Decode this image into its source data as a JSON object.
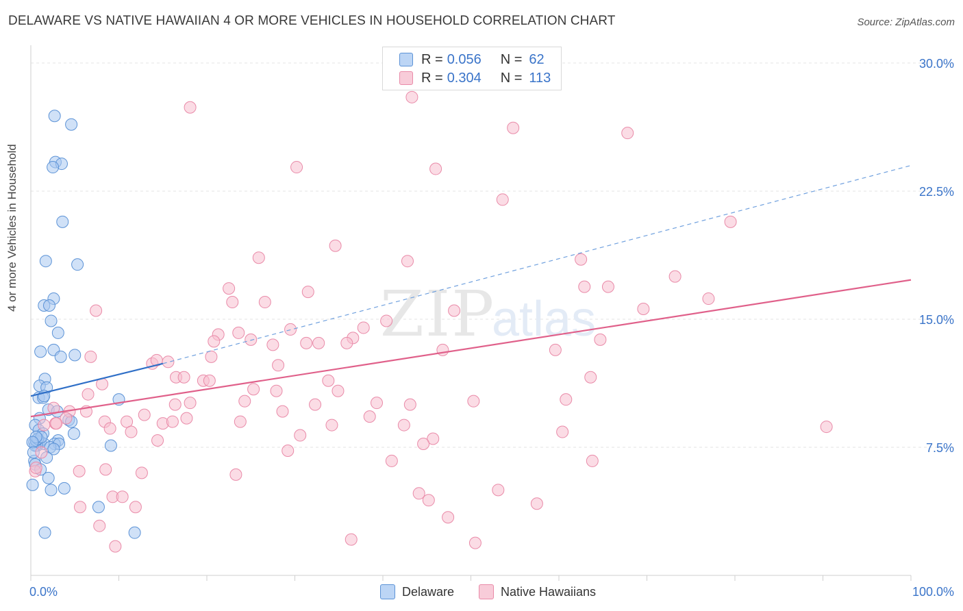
{
  "title": "DELAWARE VS NATIVE HAWAIIAN 4 OR MORE VEHICLES IN HOUSEHOLD CORRELATION CHART",
  "source": "Source: ZipAtlas.com",
  "watermark": {
    "zip": "ZIP",
    "atlas": "atlas"
  },
  "legend_top": {
    "delaware": {
      "r_label": "R =",
      "r_value": "0.056",
      "n_label": "N =",
      "n_value": "62"
    },
    "hawaiian": {
      "r_label": "R =",
      "r_value": "0.304",
      "n_label": "N =",
      "n_value": "113"
    }
  },
  "legend_bottom": {
    "delaware": "Delaware",
    "hawaiian": "Native Hawaiians"
  },
  "colors": {
    "delaware_fill": "#a9c8f0",
    "delaware_stroke": "#5b92d6",
    "delaware_line": "#2f6fc7",
    "hawaiian_fill": "#f7bfd0",
    "hawaiian_stroke": "#e98aa8",
    "hawaiian_line": "#e0608a",
    "tick_label": "#3a74c9",
    "grid": "#e3e3e3"
  },
  "chart_data": {
    "type": "scatter",
    "title": "DELAWARE VS NATIVE HAWAIIAN 4 OR MORE VEHICLES IN HOUSEHOLD CORRELATION CHART",
    "xlabel": "",
    "ylabel": "4 or more Vehicles in Household",
    "xlim": [
      0,
      100
    ],
    "ylim": [
      0,
      30.8
    ],
    "x_tick_labels": [
      {
        "value": 0,
        "label": "0.0%"
      },
      {
        "value": 100,
        "label": "100.0%"
      }
    ],
    "y_tick_labels": [
      {
        "value": 7.5,
        "label": "7.5%"
      },
      {
        "value": 15,
        "label": "15.0%"
      },
      {
        "value": 22.5,
        "label": "22.5%"
      },
      {
        "value": 30,
        "label": "30.0%"
      }
    ],
    "series": [
      {
        "name": "Delaware",
        "points": [
          [
            2.7,
            26.9
          ],
          [
            4.6,
            26.4
          ],
          [
            2.8,
            24.2
          ],
          [
            3.5,
            24.1
          ],
          [
            2.5,
            23.9
          ],
          [
            3.6,
            20.7
          ],
          [
            5.3,
            18.2
          ],
          [
            1.7,
            18.4
          ],
          [
            2.6,
            16.2
          ],
          [
            1.5,
            15.8
          ],
          [
            2.1,
            15.8
          ],
          [
            2.3,
            14.9
          ],
          [
            3.1,
            14.2
          ],
          [
            1.1,
            13.1
          ],
          [
            2.6,
            13.2
          ],
          [
            5.0,
            12.9
          ],
          [
            3.4,
            12.8
          ],
          [
            1.6,
            11.5
          ],
          [
            1.0,
            11.1
          ],
          [
            1.8,
            11.0
          ],
          [
            0.9,
            10.4
          ],
          [
            1.4,
            10.4
          ],
          [
            1.5,
            10.5
          ],
          [
            10.0,
            10.3
          ],
          [
            2.0,
            9.7
          ],
          [
            3.0,
            9.6
          ],
          [
            1.0,
            9.2
          ],
          [
            4.3,
            9.1
          ],
          [
            4.6,
            9.0
          ],
          [
            0.5,
            8.8
          ],
          [
            0.9,
            8.5
          ],
          [
            1.4,
            8.3
          ],
          [
            4.9,
            8.3
          ],
          [
            3.1,
            7.9
          ],
          [
            0.4,
            7.8
          ],
          [
            0.9,
            7.8
          ],
          [
            1.1,
            7.8
          ],
          [
            1.5,
            7.7
          ],
          [
            2.7,
            7.7
          ],
          [
            3.2,
            7.7
          ],
          [
            0.7,
            7.6
          ],
          [
            0.5,
            7.6
          ],
          [
            2.2,
            7.5
          ],
          [
            9.1,
            7.6
          ],
          [
            2.6,
            7.4
          ],
          [
            1.8,
            6.9
          ],
          [
            0.4,
            6.7
          ],
          [
            0.5,
            6.5
          ],
          [
            1.1,
            6.2
          ],
          [
            2.0,
            5.7
          ],
          [
            0.2,
            5.3
          ],
          [
            2.3,
            5.0
          ],
          [
            3.8,
            5.1
          ],
          [
            7.7,
            4.0
          ],
          [
            1.6,
            2.5
          ],
          [
            11.8,
            2.5
          ],
          [
            0.6,
            7.9
          ],
          [
            0.8,
            8.0
          ],
          [
            1.2,
            8.1
          ],
          [
            0.6,
            8.1
          ],
          [
            0.2,
            7.8
          ],
          [
            0.3,
            7.2
          ]
        ]
      },
      {
        "name": "Native Hawaiians",
        "points": [
          [
            41.1,
            29.5
          ],
          [
            43.3,
            28.0
          ],
          [
            18.1,
            27.4
          ],
          [
            54.8,
            26.2
          ],
          [
            67.8,
            25.9
          ],
          [
            30.2,
            23.9
          ],
          [
            46.0,
            23.8
          ],
          [
            53.6,
            22.0
          ],
          [
            79.5,
            20.7
          ],
          [
            34.6,
            19.3
          ],
          [
            25.9,
            18.6
          ],
          [
            42.8,
            18.4
          ],
          [
            62.5,
            18.5
          ],
          [
            73.2,
            17.5
          ],
          [
            62.9,
            16.9
          ],
          [
            65.6,
            16.9
          ],
          [
            22.5,
            16.8
          ],
          [
            31.5,
            16.6
          ],
          [
            77.0,
            16.2
          ],
          [
            7.4,
            15.5
          ],
          [
            22.9,
            16.0
          ],
          [
            26.6,
            16.0
          ],
          [
            48.1,
            15.5
          ],
          [
            69.6,
            15.6
          ],
          [
            40.4,
            14.9
          ],
          [
            37.8,
            14.5
          ],
          [
            29.5,
            14.4
          ],
          [
            23.6,
            14.2
          ],
          [
            21.3,
            14.1
          ],
          [
            36.6,
            13.9
          ],
          [
            31.3,
            13.6
          ],
          [
            20.8,
            13.7
          ],
          [
            25.0,
            13.8
          ],
          [
            32.7,
            13.6
          ],
          [
            27.5,
            13.5
          ],
          [
            35.9,
            13.6
          ],
          [
            64.7,
            13.8
          ],
          [
            59.6,
            13.2
          ],
          [
            46.8,
            13.2
          ],
          [
            20.5,
            12.8
          ],
          [
            6.8,
            12.8
          ],
          [
            15.6,
            12.5
          ],
          [
            13.8,
            12.4
          ],
          [
            14.3,
            12.6
          ],
          [
            28.1,
            12.3
          ],
          [
            16.5,
            11.6
          ],
          [
            17.4,
            11.6
          ],
          [
            19.6,
            11.4
          ],
          [
            20.3,
            11.4
          ],
          [
            33.8,
            11.4
          ],
          [
            63.6,
            11.6
          ],
          [
            8.1,
            11.2
          ],
          [
            25.3,
            10.9
          ],
          [
            34.9,
            10.8
          ],
          [
            27.9,
            10.8
          ],
          [
            6.5,
            10.6
          ],
          [
            24.3,
            10.2
          ],
          [
            18.1,
            10.1
          ],
          [
            32.3,
            10.0
          ],
          [
            39.3,
            10.1
          ],
          [
            43.1,
            10.0
          ],
          [
            16.4,
            10.0
          ],
          [
            50.3,
            10.2
          ],
          [
            60.8,
            10.3
          ],
          [
            2.6,
            9.8
          ],
          [
            4.4,
            9.6
          ],
          [
            6.3,
            9.6
          ],
          [
            12.9,
            9.4
          ],
          [
            28.6,
            9.6
          ],
          [
            38.5,
            9.3
          ],
          [
            4.0,
            9.2
          ],
          [
            8.4,
            9.0
          ],
          [
            23.8,
            9.0
          ],
          [
            17.7,
            9.2
          ],
          [
            15.0,
            8.9
          ],
          [
            16.1,
            9.0
          ],
          [
            2.8,
            8.9
          ],
          [
            10.9,
            9.0
          ],
          [
            42.4,
            8.8
          ],
          [
            90.4,
            8.7
          ],
          [
            34.2,
            8.8
          ],
          [
            1.5,
            8.8
          ],
          [
            9.0,
            8.6
          ],
          [
            11.4,
            8.4
          ],
          [
            30.6,
            8.2
          ],
          [
            45.7,
            8.0
          ],
          [
            60.4,
            8.4
          ],
          [
            14.4,
            7.9
          ],
          [
            44.6,
            7.7
          ],
          [
            29.2,
            7.3
          ],
          [
            41.0,
            6.7
          ],
          [
            63.8,
            6.7
          ],
          [
            5.5,
            6.1
          ],
          [
            12.6,
            6.0
          ],
          [
            23.3,
            5.9
          ],
          [
            8.5,
            6.2
          ],
          [
            53.1,
            5.0
          ],
          [
            44.1,
            4.8
          ],
          [
            9.3,
            4.6
          ],
          [
            10.4,
            4.6
          ],
          [
            5.6,
            4.0
          ],
          [
            11.9,
            4.0
          ],
          [
            45.2,
            4.4
          ],
          [
            57.5,
            4.2
          ],
          [
            47.4,
            3.4
          ],
          [
            7.8,
            2.9
          ],
          [
            36.4,
            2.1
          ],
          [
            50.5,
            1.9
          ],
          [
            9.6,
            1.7
          ],
          [
            0.5,
            6.1
          ],
          [
            0.6,
            6.3
          ],
          [
            1.2,
            7.2
          ],
          [
            2.9,
            8.9
          ]
        ]
      }
    ],
    "trend_lines": [
      {
        "series": "Delaware",
        "solid_from": [
          0,
          10.5
        ],
        "solid_to": [
          15,
          12.4
        ],
        "dashed_to": [
          100,
          24.0
        ]
      },
      {
        "series": "Native Hawaiians",
        "from": [
          0,
          9.3
        ],
        "to": [
          100,
          17.3
        ]
      }
    ]
  }
}
